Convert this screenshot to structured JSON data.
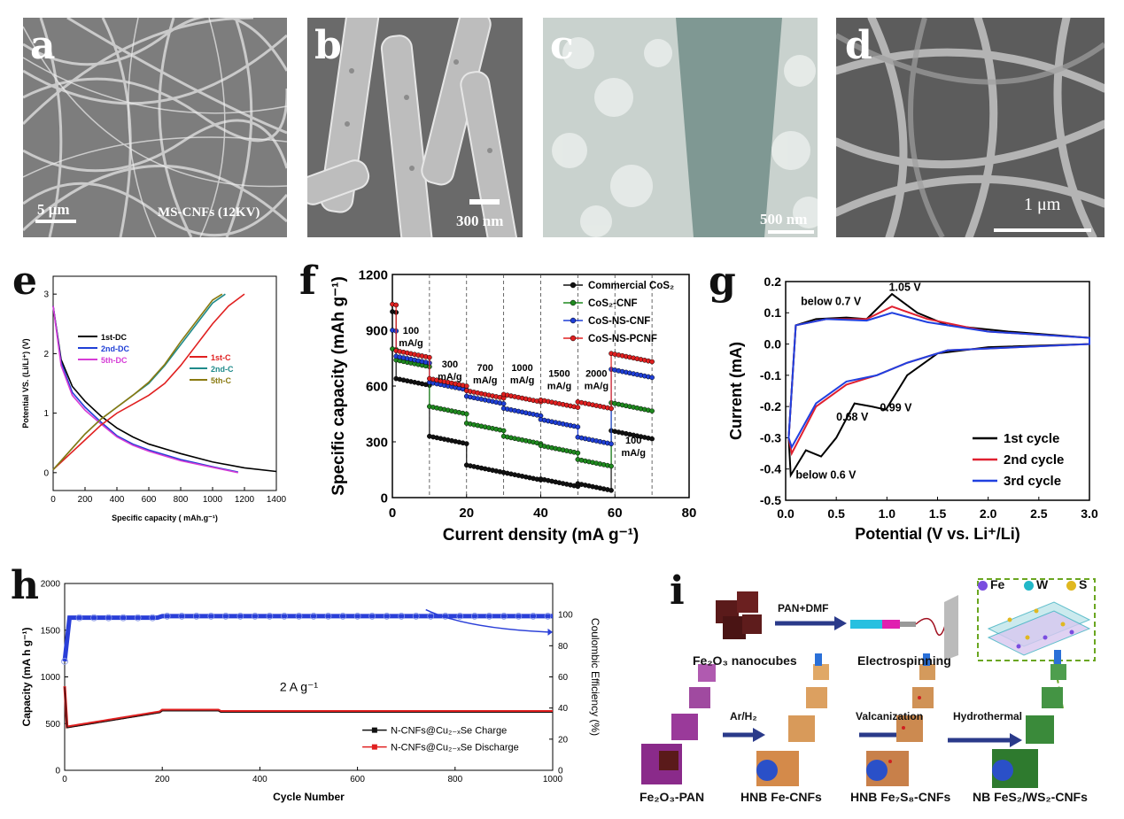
{
  "sem_panels": [
    {
      "letter": "a",
      "scale_text": "5 μm",
      "caption": "MS-CNFs (12KV)",
      "color": "#7d7d7d"
    },
    {
      "letter": "b",
      "scale_text": "300 nm",
      "caption": "",
      "color": "#8a8a8a"
    },
    {
      "letter": "c",
      "scale_text": "500 nm",
      "caption": "",
      "color": "#a9b4b0"
    },
    {
      "letter": "d",
      "scale_text": "1 μm",
      "caption": "",
      "color": "#6e6e6e"
    }
  ],
  "letters": {
    "e": "e",
    "f": "f",
    "g": "g",
    "h": "h",
    "i": "i"
  },
  "chart_data": [
    {
      "type": "line",
      "id": "e",
      "xlabel": "Specific capacity ( mAh.g⁻¹)",
      "ylabel": "Potential VS. (Li/Li⁺) (V)",
      "xlim": [
        0,
        1400
      ],
      "ylim": [
        -0.3,
        3.3
      ],
      "xticks": [
        0,
        200,
        400,
        600,
        800,
        1000,
        1200,
        1400
      ],
      "yticks": [
        0,
        1,
        2,
        3
      ],
      "series": [
        {
          "name": "1st-DC",
          "color": "#000000",
          "x": [
            0,
            50,
            120,
            200,
            300,
            400,
            500,
            600,
            800,
            1000,
            1200,
            1400
          ],
          "y": [
            2.8,
            1.9,
            1.45,
            1.2,
            0.95,
            0.75,
            0.6,
            0.48,
            0.32,
            0.18,
            0.08,
            0.02
          ]
        },
        {
          "name": "2nd-DC",
          "color": "#1f3fd6",
          "x": [
            0,
            50,
            120,
            200,
            300,
            400,
            500,
            600,
            800,
            1000,
            1160
          ],
          "y": [
            2.8,
            1.85,
            1.35,
            1.1,
            0.85,
            0.62,
            0.48,
            0.38,
            0.22,
            0.1,
            0.01
          ]
        },
        {
          "name": "5th-DC",
          "color": "#d63cd6",
          "x": [
            0,
            50,
            120,
            200,
            300,
            400,
            500,
            600,
            800,
            1000,
            1160
          ],
          "y": [
            2.8,
            1.8,
            1.3,
            1.05,
            0.82,
            0.6,
            0.46,
            0.36,
            0.2,
            0.09,
            0.0
          ]
        },
        {
          "name": "1st-C",
          "color": "#e02020",
          "x": [
            0,
            100,
            200,
            300,
            400,
            500,
            600,
            700,
            800,
            900,
            1000,
            1100,
            1200
          ],
          "y": [
            0.05,
            0.3,
            0.55,
            0.8,
            1.0,
            1.15,
            1.3,
            1.5,
            1.8,
            2.15,
            2.5,
            2.8,
            3.0
          ]
        },
        {
          "name": "2nd-C",
          "color": "#1f8a8a",
          "x": [
            0,
            100,
            200,
            300,
            400,
            500,
            600,
            700,
            800,
            900,
            1000,
            1080
          ],
          "y": [
            0.05,
            0.35,
            0.65,
            0.9,
            1.1,
            1.3,
            1.5,
            1.8,
            2.15,
            2.5,
            2.85,
            3.0
          ]
        },
        {
          "name": "5th-C",
          "color": "#8a7a10",
          "x": [
            0,
            100,
            200,
            300,
            400,
            500,
            600,
            700,
            800,
            900,
            1000,
            1060
          ],
          "y": [
            0.05,
            0.35,
            0.65,
            0.9,
            1.1,
            1.3,
            1.52,
            1.82,
            2.2,
            2.55,
            2.9,
            3.0
          ]
        }
      ]
    },
    {
      "type": "scatter",
      "id": "f",
      "xlabel": "Current density (mA g⁻¹)",
      "ylabel": "Specific capacity (mAh g⁻¹)",
      "xlim": [
        0,
        80
      ],
      "ylim": [
        0,
        1200
      ],
      "xticks": [
        0,
        20,
        40,
        60,
        80
      ],
      "yticks": [
        0,
        300,
        600,
        900,
        1200
      ],
      "dividers": [
        10,
        20,
        30,
        40,
        50,
        60,
        70
      ],
      "rate_labels": [
        {
          "text": "100 mA/g",
          "x": 5,
          "y": 880
        },
        {
          "text": "300 mA/g",
          "x": 15.5,
          "y": 700
        },
        {
          "text": "700 mA/g",
          "x": 25,
          "y": 680
        },
        {
          "text": "1000 mA/g",
          "x": 35,
          "y": 680
        },
        {
          "text": "1500 mA/g",
          "x": 45,
          "y": 650
        },
        {
          "text": "2000 mA/g",
          "x": 55,
          "y": 650
        },
        {
          "text": "100 mA/g",
          "x": 65,
          "y": 290
        }
      ],
      "series": [
        {
          "name": "Commercial CoS₂",
          "color": "#111111",
          "levels": [
            [
              0,
              1,
              1000
            ],
            [
              1,
              10,
              640
            ],
            [
              10,
              20,
              330
            ],
            [
              20,
              30,
              175
            ],
            [
              30,
              40,
              135
            ],
            [
              40,
              50,
              100
            ],
            [
              50,
              59,
              75
            ],
            [
              59,
              70,
              360
            ]
          ]
        },
        {
          "name": "CoS₂-CNF",
          "color": "#1f8a1f",
          "levels": [
            [
              0,
              1,
              800
            ],
            [
              1,
              10,
              740
            ],
            [
              10,
              20,
              490
            ],
            [
              20,
              30,
              400
            ],
            [
              30,
              40,
              330
            ],
            [
              40,
              50,
              280
            ],
            [
              50,
              59,
              205
            ],
            [
              59,
              70,
              510
            ]
          ]
        },
        {
          "name": "CoS-NS-CNF",
          "color": "#1f3fd6",
          "levels": [
            [
              0,
              1,
              900
            ],
            [
              1,
              10,
              760
            ],
            [
              10,
              20,
              620
            ],
            [
              20,
              30,
              545
            ],
            [
              30,
              40,
              480
            ],
            [
              40,
              50,
              420
            ],
            [
              50,
              59,
              325
            ],
            [
              59,
              70,
              690
            ]
          ]
        },
        {
          "name": "CoS-NS-PCNF",
          "color": "#e02020",
          "levels": [
            [
              0,
              1,
              1040
            ],
            [
              1,
              10,
              790
            ],
            [
              10,
              20,
              640
            ],
            [
              20,
              30,
              575
            ],
            [
              30,
              40,
              555
            ],
            [
              40,
              50,
              525
            ],
            [
              50,
              59,
              515
            ],
            [
              59,
              70,
              775
            ]
          ]
        }
      ]
    },
    {
      "type": "line",
      "id": "g",
      "xlabel": "Potential (V vs. Li⁺/Li)",
      "ylabel": "Current (mA)",
      "xlim": [
        0,
        3.0
      ],
      "ylim": [
        -0.5,
        0.2
      ],
      "xticks": [
        "0.0",
        "0.5",
        "1.0",
        "1.5",
        "2.0",
        "2.5",
        "3.0"
      ],
      "yticks": [
        "-0.5",
        "-0.4",
        "-0.3",
        "-0.2",
        "-0.1",
        "0.0",
        "0.1",
        "0.2"
      ],
      "annotations": [
        {
          "text": "below 0.7 V",
          "x": 0.15,
          "y": 0.125
        },
        {
          "text": "1.05 V",
          "x": 1.02,
          "y": 0.17
        },
        {
          "text": "0.99 V",
          "x": 0.93,
          "y": -0.215
        },
        {
          "text": "0.68 V",
          "x": 0.5,
          "y": -0.245
        },
        {
          "text": "below 0.6 V",
          "x": 0.1,
          "y": -0.43
        }
      ],
      "series": [
        {
          "name": "1st cycle",
          "color": "#000000"
        },
        {
          "name": "2nd cycle",
          "color": "#e02030"
        },
        {
          "name": "3rd cycle",
          "color": "#2040e0"
        }
      ]
    },
    {
      "type": "scatter",
      "id": "h",
      "xlabel": "Cycle Number",
      "ylabel": "Capacity (mA h g⁻¹)",
      "y2label": "Coulombic Efficiency (%)",
      "annotation": "2 A g⁻¹",
      "xlim": [
        0,
        1000
      ],
      "ylim": [
        0,
        2000
      ],
      "y2lim": [
        0,
        120
      ],
      "xticks": [
        0,
        200,
        400,
        600,
        800,
        1000
      ],
      "yticks": [
        0,
        500,
        1000,
        1500,
        2000
      ],
      "y2ticks": [
        0,
        20,
        40,
        60,
        80,
        100
      ],
      "series": [
        {
          "name": "N-CNFs@Cu₂₋ₓSe Charge",
          "color": "#111111"
        },
        {
          "name": "N-CNFs@Cu₂₋ₓSe Discharge",
          "color": "#e02020"
        }
      ]
    }
  ],
  "schematic": {
    "legend": [
      {
        "label": "Fe",
        "color": "#7a4de0"
      },
      {
        "label": "W",
        "color": "#22b8c8"
      },
      {
        "label": "S",
        "color": "#e0b820"
      }
    ],
    "top_arrow": "PAN+DMF",
    "top_labels": [
      "Fe₂O₃ nanocubes",
      "Electrospinning"
    ],
    "arrows": [
      "Ar/H₂",
      "Valcanization",
      "Hydrothermal"
    ],
    "bottom_labels": [
      "Fe₂O₃-PAN",
      "HNB Fe-CNFs",
      "HNB Fe₇S₈-CNFs",
      "NB FeS₂/WS₂-CNFs"
    ]
  }
}
